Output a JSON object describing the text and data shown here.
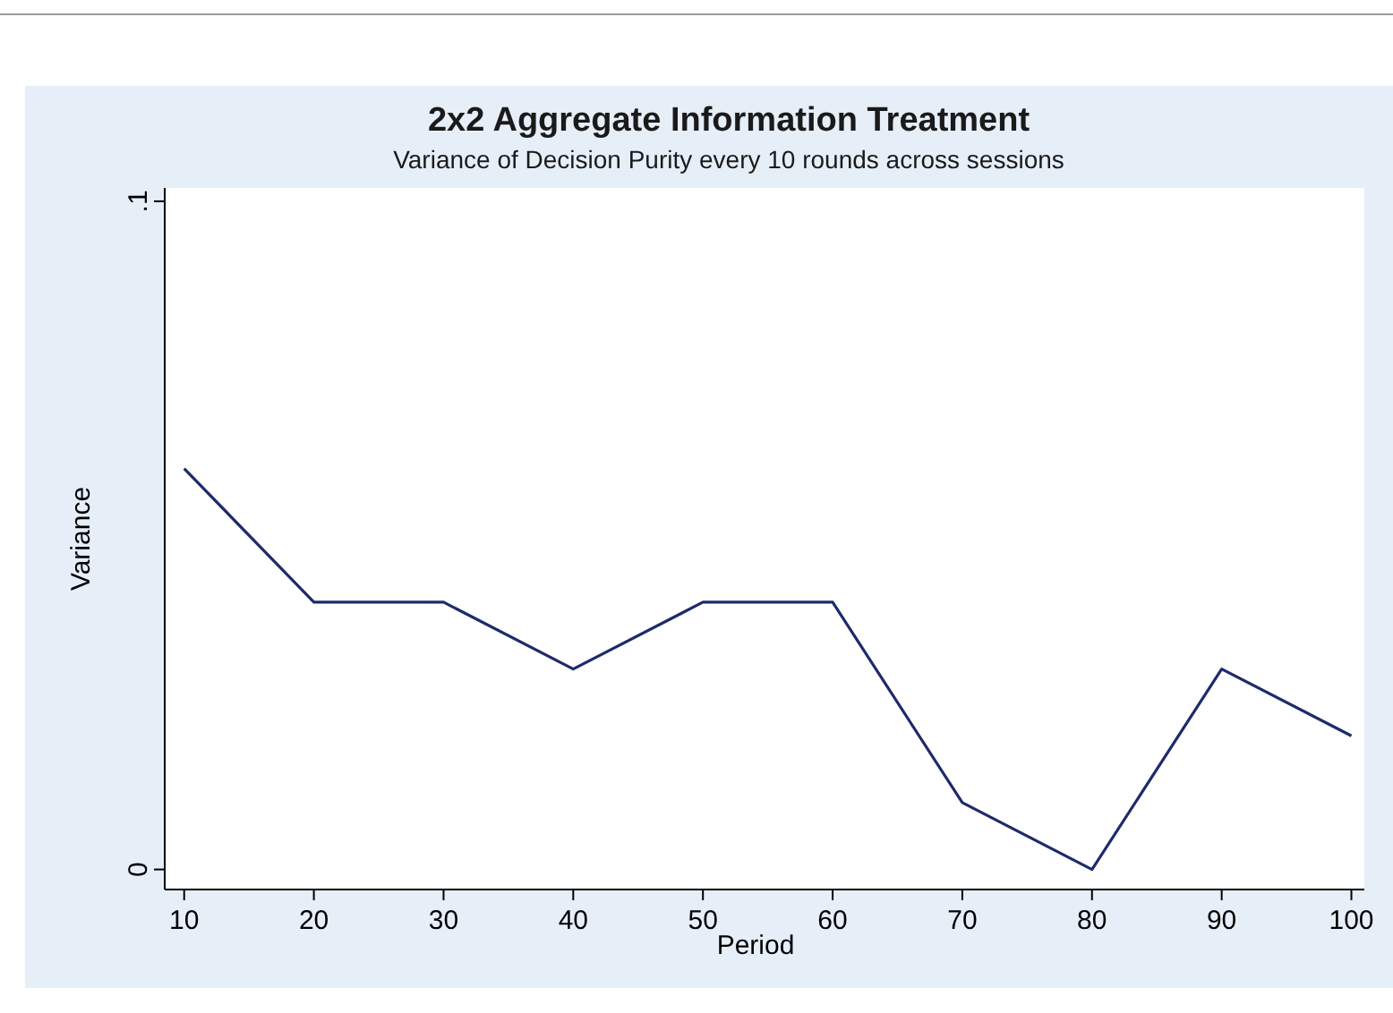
{
  "chart_data": {
    "type": "line",
    "title": "2x2 Aggregate Information Treatment",
    "subtitle": "Variance of Decision Purity every 10 rounds across sessions",
    "xlabel": "Period",
    "ylabel": "Variance",
    "x": [
      10,
      20,
      30,
      40,
      50,
      60,
      70,
      80,
      90,
      100
    ],
    "series": [
      {
        "color": "#1f2a6b",
        "values": [
          0.06,
          0.04,
          0.04,
          0.03,
          0.04,
          0.04,
          0.01,
          0,
          0.03,
          0.02
        ]
      }
    ],
    "xlim": [
      8.5,
      101
    ],
    "xticks": [
      10,
      20,
      30,
      40,
      50,
      60,
      70,
      80,
      90,
      100
    ],
    "ylim": [
      -0.003,
      0.102
    ],
    "yticks": [
      {
        "value": 0,
        "label": "0"
      },
      {
        "value": 0.1,
        "label": ".1"
      }
    ],
    "grid": false,
    "marker": "none",
    "line_style": "solid"
  }
}
